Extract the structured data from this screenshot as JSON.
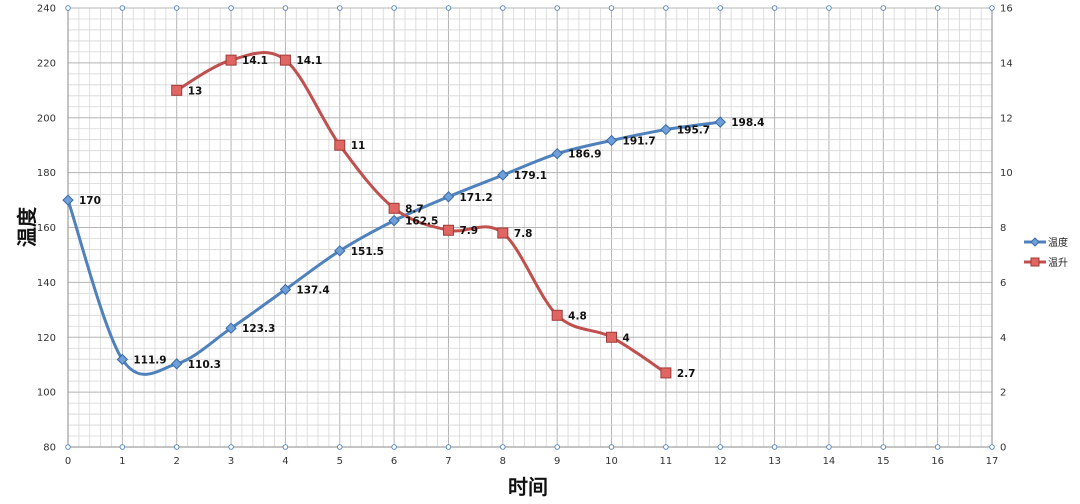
{
  "chart_data": {
    "type": "line",
    "title": "",
    "xlabel": "时间",
    "ylabel": "温度",
    "y2label": "",
    "xlim": [
      0,
      17
    ],
    "ylim": [
      80,
      240
    ],
    "y2lim": [
      0,
      16
    ],
    "x_ticks": [
      0,
      1,
      2,
      3,
      4,
      5,
      6,
      7,
      8,
      9,
      10,
      11,
      12,
      13,
      14,
      15,
      16,
      17
    ],
    "y_ticks": [
      80,
      100,
      120,
      140,
      160,
      180,
      200,
      220,
      240
    ],
    "y2_ticks": [
      0,
      2,
      4,
      6,
      8,
      10,
      12,
      14,
      16
    ],
    "grid": true,
    "legend_position": "right",
    "series": [
      {
        "name": "温度",
        "axis": "left",
        "color": "#4F81BD",
        "marker": "diamond",
        "x": [
          0,
          1,
          2,
          3,
          4,
          5,
          6,
          7,
          8,
          9,
          10,
          11,
          12
        ],
        "values": [
          170,
          111.9,
          110.3,
          123.3,
          137.4,
          151.5,
          162.5,
          171.2,
          179.1,
          186.9,
          191.7,
          195.7,
          198.4
        ],
        "labels": [
          "170",
          "111.9",
          "110.3",
          "123.3",
          "137.4",
          "151.5",
          "162.5",
          "171.2",
          "179.1",
          "186.9",
          "191.7",
          "195.7",
          "198.4"
        ]
      },
      {
        "name": "温升",
        "axis": "right",
        "color": "#C0504D",
        "marker": "square",
        "x": [
          2,
          3,
          4,
          5,
          6,
          7,
          8,
          9,
          10,
          11
        ],
        "values": [
          13,
          14.1,
          14.1,
          11,
          8.7,
          7.9,
          7.8,
          4.8,
          4,
          2.7
        ],
        "labels": [
          "13",
          "14.1",
          "14.1",
          "11",
          "8.7",
          "7.9",
          "7.8",
          "4.8",
          "4",
          "2.7"
        ]
      }
    ]
  }
}
